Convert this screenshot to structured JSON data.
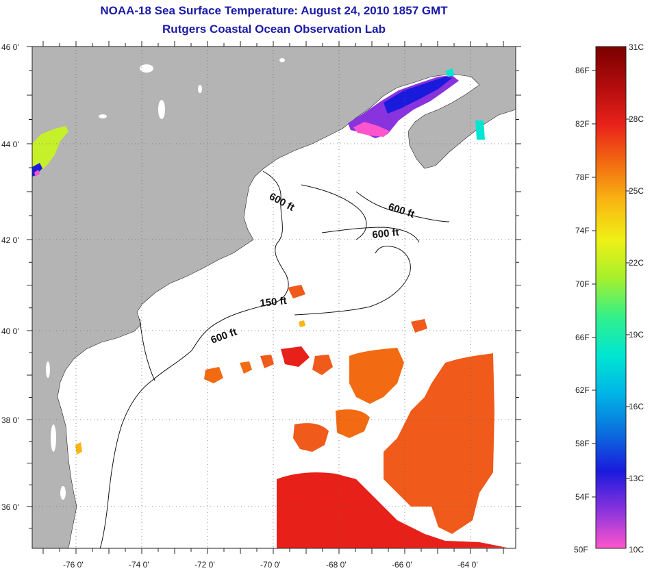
{
  "title": "NOAA-18 Sea Surface Temperature:  August 24, 2010 1857 GMT",
  "subtitle": "Rutgers Coastal Ocean Observation Lab",
  "lat_labels": [
    {
      "lat": 46,
      "text": "46 0'"
    },
    {
      "lat": 44,
      "text": "44 0'"
    },
    {
      "lat": 42,
      "text": "42 0'"
    },
    {
      "lat": 40,
      "text": "40 0'"
    },
    {
      "lat": 38,
      "text": "38 0'"
    },
    {
      "lat": 36,
      "text": "36 0'"
    }
  ],
  "lon_labels": [
    {
      "lon": -76,
      "text": "-76 0'"
    },
    {
      "lon": -74,
      "text": "-74 0'"
    },
    {
      "lon": -72,
      "text": "-72 0'"
    },
    {
      "lon": -70,
      "text": "-70 0'"
    },
    {
      "lon": -68,
      "text": "-68 0'"
    },
    {
      "lon": -66,
      "text": "-66 0'"
    },
    {
      "lon": -64,
      "text": "-64 0'"
    }
  ],
  "depth_labels": [
    "600 ft",
    "600 ft",
    "600 ft",
    "150 ft",
    "600 ft"
  ],
  "colorbar": {
    "fahrenheit": [
      "86F",
      "82F",
      "78F",
      "74F",
      "70F",
      "66F",
      "62F",
      "58F",
      "54F",
      "50F"
    ],
    "celsius": [
      "31C",
      "28C",
      "25C",
      "22C",
      "19C",
      "16C",
      "13C",
      "10C"
    ],
    "colors": [
      "#ff55cc",
      "#8833dd",
      "#1a1add",
      "#0a6fdd",
      "#00b4e6",
      "#00e6d2",
      "#33f08a",
      "#a6f02c",
      "#f0f016",
      "#f9b612",
      "#f26a12",
      "#e8201a",
      "#b00c0c",
      "#7a0000"
    ]
  },
  "colors": {
    "land": "#b4b4b4",
    "title": "#1a1aa8",
    "sst_warm": "#f0521c",
    "sst_hot": "#e8201a"
  }
}
